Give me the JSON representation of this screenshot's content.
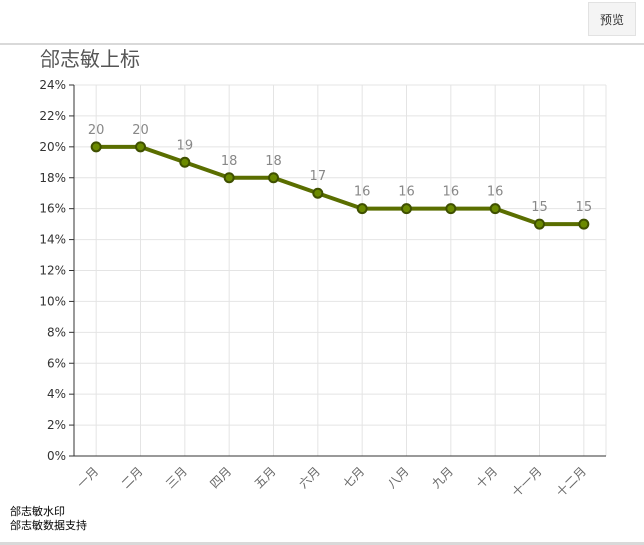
{
  "toolbar": {
    "preview_label": "预览"
  },
  "footer": {
    "watermark": "郃志敏水印",
    "support": "郃志敏数据支持"
  },
  "chart_data": {
    "type": "line",
    "title": "郃志敏上标",
    "categories": [
      "一月",
      "二月",
      "三月",
      "四月",
      "五月",
      "六月",
      "七月",
      "八月",
      "九月",
      "十月",
      "十一月",
      "十二月"
    ],
    "series": [
      {
        "values": [
          20,
          20,
          19,
          18,
          18,
          17,
          16,
          16,
          16,
          16,
          15,
          15
        ],
        "color": "#5a6e00"
      }
    ],
    "data_labels": [
      "20",
      "20",
      "19",
      "18",
      "18",
      "17",
      "16",
      "16",
      "16",
      "16",
      "15",
      "15"
    ],
    "ylim": [
      0,
      24
    ],
    "y_ticks": [
      "0%",
      "2%",
      "4%",
      "6%",
      "8%",
      "10%",
      "12%",
      "14%",
      "16%",
      "18%",
      "20%",
      "22%",
      "24%"
    ],
    "y_tick_values": [
      0,
      2,
      4,
      6,
      8,
      10,
      12,
      14,
      16,
      18,
      20,
      22,
      24
    ],
    "grid": true,
    "colors": {
      "line": "#5a6e00",
      "grid": "#e4e4e4",
      "axis": "#333333",
      "label": "#888888"
    }
  }
}
